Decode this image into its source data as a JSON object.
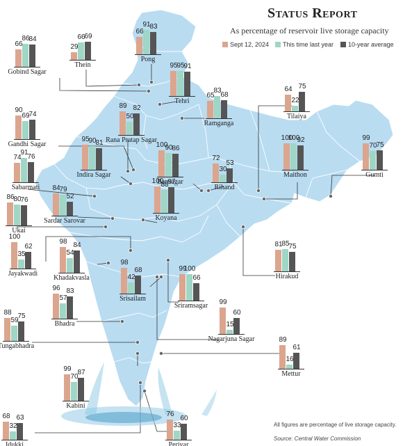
{
  "header": {
    "title": "Status Report",
    "subtitle": "As percentage of reservoir live storage capacity"
  },
  "legend": [
    {
      "label": "Sept 12, 2024",
      "color": "#dba58e"
    },
    {
      "label": "This time last year",
      "color": "#9fd6c5"
    },
    {
      "label": "10-year average",
      "color": "#555555"
    }
  ],
  "map_colors": {
    "land": "#b9dcf1",
    "border": "#ffffff",
    "leader": "#333333"
  },
  "reservoirs": [
    {
      "name": "Gobind Sagar",
      "values": [
        66,
        86,
        84
      ]
    },
    {
      "name": "Thein",
      "values": [
        29,
        66,
        69
      ]
    },
    {
      "name": "Pong",
      "values": [
        66,
        91,
        83
      ]
    },
    {
      "name": "Tehri",
      "values": [
        95,
        95,
        91
      ]
    },
    {
      "name": "Ramganga",
      "values": [
        65,
        83,
        68
      ]
    },
    {
      "name": "Tilaiya",
      "values": [
        64,
        22,
        75
      ]
    },
    {
      "name": "Gandhi Sagar",
      "values": [
        90,
        69,
        74
      ]
    },
    {
      "name": "Rana Pratap Sagar",
      "values": [
        89,
        50,
        82
      ]
    },
    {
      "name": "Indira Sagar",
      "values": [
        95,
        90,
        81
      ]
    },
    {
      "name": "Bansagar",
      "values": [
        100,
        90,
        86
      ]
    },
    {
      "name": "Rihand",
      "values": [
        72,
        30,
        53
      ]
    },
    {
      "name": "Maithon",
      "values": [
        100,
        100,
        92
      ]
    },
    {
      "name": "Gumti",
      "values": [
        99,
        70,
        75
      ]
    },
    {
      "name": "Sabarmati",
      "values": [
        74,
        91,
        76
      ]
    },
    {
      "name": "Sardar Sarovar",
      "values": [
        84,
        79,
        52
      ]
    },
    {
      "name": "Ukai",
      "values": [
        86,
        80,
        76
      ]
    },
    {
      "name": "Koyana",
      "values": [
        100,
        88,
        97
      ]
    },
    {
      "name": "Jayakwadi",
      "values": [
        100,
        35,
        62
      ]
    },
    {
      "name": "Khadakvasla",
      "values": [
        98,
        54,
        84
      ]
    },
    {
      "name": "Hirakud",
      "values": [
        81,
        85,
        75
      ]
    },
    {
      "name": "Srisailam",
      "values": [
        98,
        42,
        68
      ]
    },
    {
      "name": "Sriramsagar",
      "values": [
        99,
        100,
        66
      ]
    },
    {
      "name": "Bhadra",
      "values": [
        96,
        57,
        83
      ]
    },
    {
      "name": "Nagarjuna Sagar",
      "values": [
        99,
        15,
        60
      ]
    },
    {
      "name": "Tungabhadra",
      "values": [
        88,
        59,
        75
      ]
    },
    {
      "name": "Mettur",
      "values": [
        89,
        16,
        61
      ]
    },
    {
      "name": "Kabini",
      "values": [
        99,
        70,
        87
      ]
    },
    {
      "name": "Idukki",
      "values": [
        68,
        32,
        63
      ]
    },
    {
      "name": "Periyar",
      "values": [
        76,
        33,
        60
      ]
    }
  ],
  "footnote": "All figures are percentage of live storage capacity.",
  "source": "Source: Central Water Commission"
}
